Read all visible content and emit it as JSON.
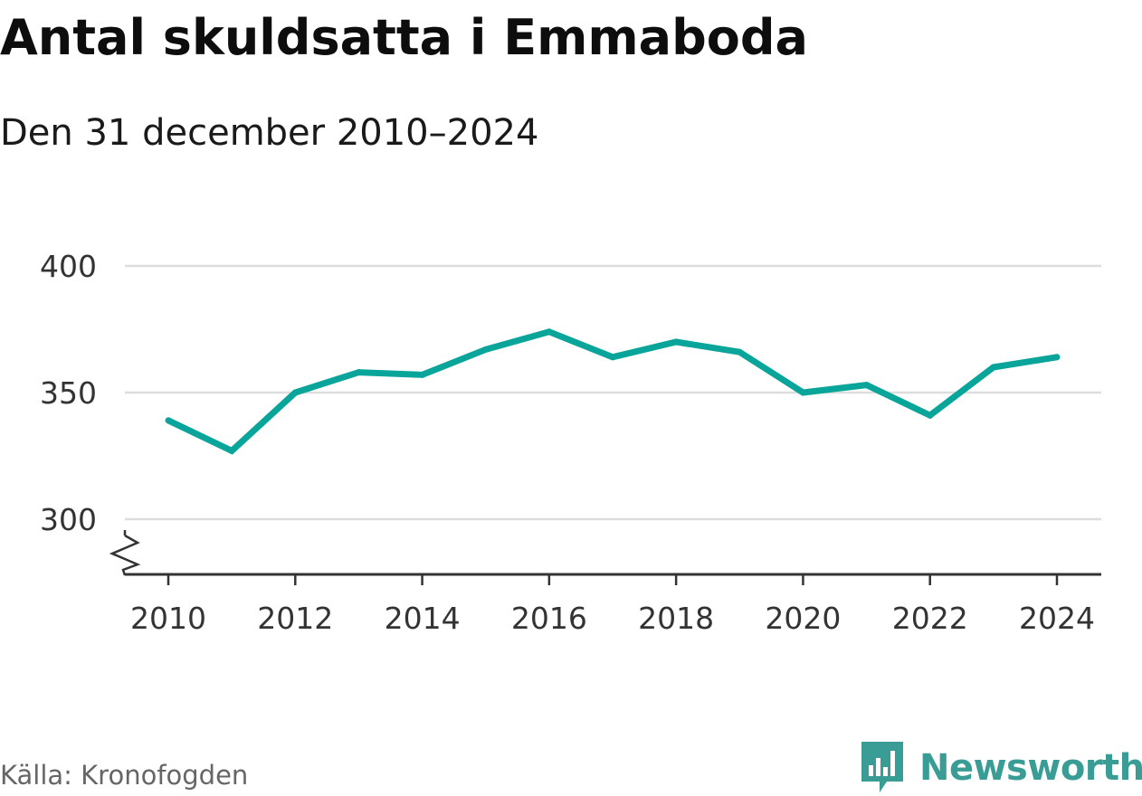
{
  "title": "Antal skuldsatta i Emmaboda",
  "subtitle": "Den 31 december 2010–2024",
  "source": "Källa: Kronofogden",
  "brand": "Newsworthy",
  "colors": {
    "line": "#0aa59a",
    "brand": "#3a9d95",
    "grid": "#dddddd",
    "axis": "#333333"
  },
  "chart_data": {
    "type": "line",
    "title": "Antal skuldsatta i Emmaboda",
    "subtitle": "Den 31 december 2010–2024",
    "xlabel": "",
    "ylabel": "",
    "x": [
      2010,
      2011,
      2012,
      2013,
      2014,
      2015,
      2016,
      2017,
      2018,
      2019,
      2020,
      2021,
      2022,
      2023,
      2024
    ],
    "series": [
      {
        "values": [
          339,
          327,
          350,
          358,
          357,
          367,
          374,
          364,
          370,
          366,
          350,
          353,
          341,
          360,
          364
        ]
      }
    ],
    "ylim": [
      300,
      400
    ],
    "yticks": [
      300,
      350,
      400
    ],
    "xticks": [
      2010,
      2012,
      2014,
      2016,
      2018,
      2020,
      2022,
      2024
    ],
    "y_axis_break": true,
    "grid": true,
    "legend": "none"
  }
}
